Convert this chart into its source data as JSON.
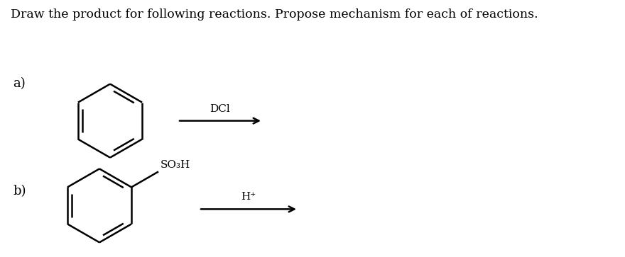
{
  "title": "Draw the product for following reactions. Propose mechanism for each of reactions.",
  "title_fontsize": 12.5,
  "background_color": "#ffffff",
  "label_a": "a)",
  "label_b": "b)",
  "reagent_a": "DCl",
  "reagent_b": "H⁺",
  "so3h_label": "SO₃H",
  "line_color": "#000000",
  "line_width": 1.8,
  "fig_width": 8.8,
  "fig_height": 3.63,
  "dpi": 100
}
